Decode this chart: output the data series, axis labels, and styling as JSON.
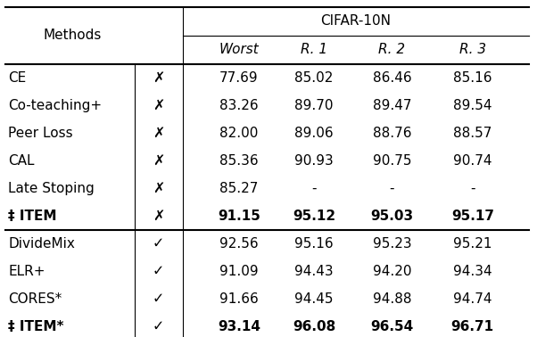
{
  "title": "CIFAR-10N",
  "group1": [
    [
      "CE",
      "✗",
      "77.69",
      "85.02",
      "86.46",
      "85.16",
      false
    ],
    [
      "Co-teaching+",
      "✗",
      "83.26",
      "89.70",
      "89.47",
      "89.54",
      false
    ],
    [
      "Peer Loss",
      "✗",
      "82.00",
      "89.06",
      "88.76",
      "88.57",
      false
    ],
    [
      "CAL",
      "✗",
      "85.36",
      "90.93",
      "90.75",
      "90.74",
      false
    ],
    [
      "Late Stoping",
      "✗",
      "85.27",
      "-",
      "-",
      "-",
      false
    ],
    [
      "‡ ITEM",
      "✗",
      "91.15",
      "95.12",
      "95.03",
      "95.17",
      true
    ]
  ],
  "group2": [
    [
      "DivideMix",
      "✓",
      "92.56",
      "95.16",
      "95.23",
      "95.21",
      false
    ],
    [
      "ELR+",
      "✓",
      "91.09",
      "94.43",
      "94.20",
      "94.34",
      false
    ],
    [
      "CORES*",
      "✓",
      "91.66",
      "94.45",
      "94.88",
      "94.74",
      false
    ],
    [
      "‡ ITEM*",
      "✓",
      "93.14",
      "96.08",
      "96.54",
      "96.71",
      true
    ]
  ],
  "bg_color": "#ffffff",
  "text_color": "#000000",
  "font_size": 11.0
}
